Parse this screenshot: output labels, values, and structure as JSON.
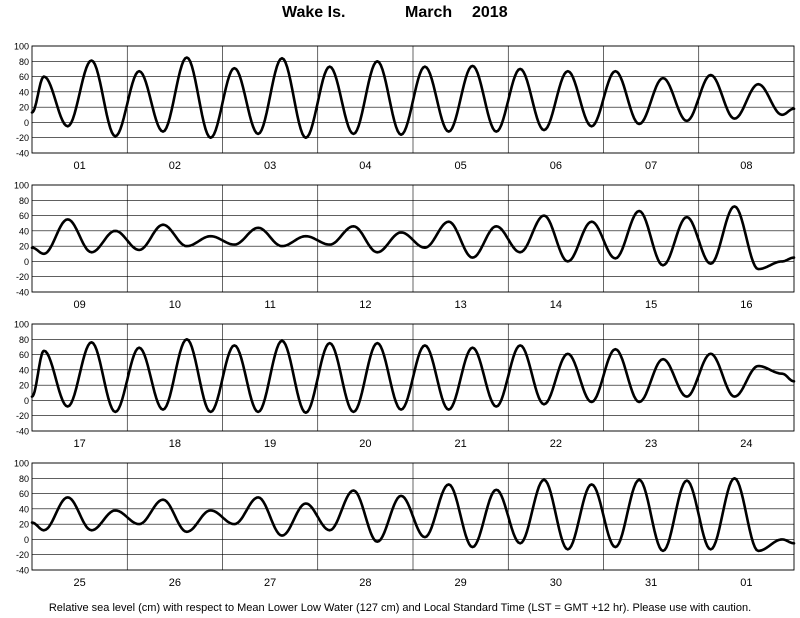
{
  "title": {
    "station": "Wake Is.",
    "month": "March",
    "year": "2018"
  },
  "footer": "Relative sea level (cm) with respect to Mean Lower Low Water (127 cm) and Local Standard Time (LST = GMT +12 hr). Please use with caution.",
  "chart_data": {
    "type": "line",
    "title": "Wake Is.   March  2018",
    "xlabel": "",
    "ylabel": "",
    "ylim": [
      -40,
      100
    ],
    "yticks": [
      "100",
      "80",
      "60",
      "40",
      "20",
      "0",
      "-20",
      "-40"
    ],
    "grid": true,
    "line_color": "#000000",
    "panels": [
      {
        "day_labels": [
          "01",
          "02",
          "03",
          "04",
          "05",
          "06",
          "07",
          "08"
        ],
        "series": [
          {
            "x_hours": [
              0,
              3,
              9,
              15,
              21,
              27,
              33,
              39,
              45,
              51,
              57,
              63,
              69,
              75,
              81,
              87,
              93,
              99,
              105,
              111,
              117,
              123,
              129,
              135,
              141,
              147,
              153,
              159,
              165,
              171,
              177,
              183,
              189,
              192
            ],
            "values": [
              13,
              60,
              -5,
              81,
              -18,
              67,
              -12,
              85,
              -20,
              71,
              -15,
              84,
              -20,
              73,
              -15,
              80,
              -16,
              73,
              -12,
              74,
              -12,
              70,
              -10,
              67,
              -5,
              67,
              -2,
              58,
              2,
              62,
              5,
              50,
              10,
              18
            ]
          }
        ]
      },
      {
        "day_labels": [
          "09",
          "10",
          "11",
          "12",
          "13",
          "14",
          "15",
          "16"
        ],
        "series": [
          {
            "x_hours": [
              0,
              3,
              9,
              15,
              21,
              27,
              33,
              39,
              45,
              51,
              57,
              63,
              69,
              75,
              81,
              87,
              93,
              99,
              105,
              111,
              117,
              123,
              129,
              135,
              141,
              147,
              153,
              159,
              165,
              171,
              177,
              183,
              189,
              192
            ],
            "values": [
              18,
              10,
              55,
              12,
              40,
              15,
              48,
              20,
              33,
              22,
              44,
              20,
              33,
              22,
              46,
              12,
              38,
              18,
              52,
              5,
              46,
              12,
              60,
              0,
              52,
              4,
              66,
              -5,
              58,
              -3,
              72,
              -10,
              0,
              5
            ]
          }
        ]
      },
      {
        "day_labels": [
          "17",
          "18",
          "19",
          "20",
          "21",
          "22",
          "23",
          "24"
        ],
        "series": [
          {
            "x_hours": [
              0,
              3,
              9,
              15,
              21,
              27,
              33,
              39,
              45,
              51,
              57,
              63,
              69,
              75,
              81,
              87,
              93,
              99,
              105,
              111,
              117,
              123,
              129,
              135,
              141,
              147,
              153,
              159,
              165,
              171,
              177,
              183,
              189,
              192
            ],
            "values": [
              5,
              65,
              -8,
              76,
              -15,
              69,
              -12,
              80,
              -15,
              72,
              -15,
              78,
              -16,
              75,
              -15,
              75,
              -12,
              72,
              -12,
              69,
              -8,
              72,
              -5,
              61,
              -2,
              67,
              -2,
              54,
              5,
              61,
              5,
              45,
              35,
              25
            ]
          }
        ]
      },
      {
        "day_labels": [
          "25",
          "26",
          "27",
          "28",
          "29",
          "30",
          "31",
          "01"
        ],
        "series": [
          {
            "x_hours": [
              0,
              3,
              9,
              15,
              21,
              27,
              33,
              39,
              45,
              51,
              57,
              63,
              69,
              75,
              81,
              87,
              93,
              99,
              105,
              111,
              117,
              123,
              129,
              135,
              141,
              147,
              153,
              159,
              165,
              171,
              177,
              183,
              189,
              192
            ],
            "values": [
              22,
              12,
              55,
              12,
              38,
              20,
              52,
              10,
              38,
              20,
              55,
              5,
              47,
              12,
              64,
              -3,
              57,
              3,
              72,
              -10,
              65,
              -5,
              78,
              -13,
              72,
              -10,
              78,
              -15,
              77,
              -13,
              80,
              -15,
              0,
              -5
            ]
          }
        ]
      }
    ]
  }
}
